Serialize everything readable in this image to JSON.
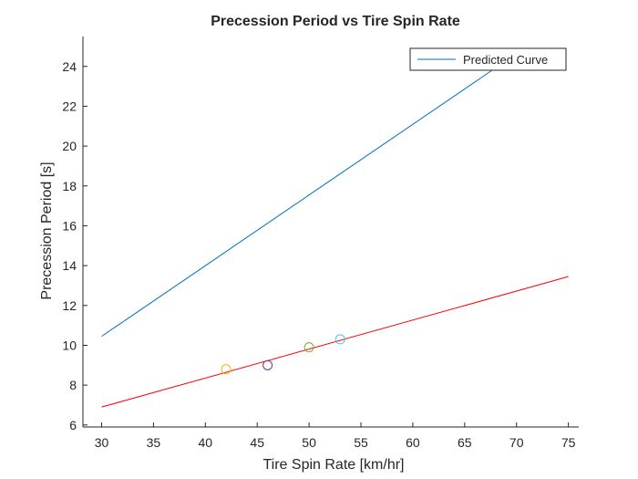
{
  "chart_data": {
    "type": "line",
    "title": "Precession Period vs Tire Spin Rate",
    "xlabel": "Tire Spin Rate [km/hr]",
    "ylabel": "Precession Period [s]",
    "xlim": [
      28.2,
      76
    ],
    "ylim": [
      5.9,
      25.5
    ],
    "xticks": [
      30,
      35,
      40,
      45,
      50,
      55,
      60,
      65,
      70,
      75
    ],
    "yticks": [
      6,
      8,
      10,
      12,
      14,
      16,
      18,
      20,
      22,
      24
    ],
    "grid": false,
    "legend": {
      "entries": [
        "Predicted Curve"
      ],
      "location": "top-right"
    },
    "series": [
      {
        "name": "Predicted Curve",
        "kind": "line",
        "color": "#0072BD",
        "x": [
          30,
          68.2
        ],
        "y": [
          10.45,
          24
        ]
      },
      {
        "kind": "line",
        "color": "#FF0000",
        "x": [
          30,
          75
        ],
        "y": [
          6.9,
          13.45
        ]
      },
      {
        "kind": "markers",
        "marker": "circle",
        "points": [
          {
            "x": 42,
            "y": 8.8,
            "color": "#EDB120"
          },
          {
            "x": 46,
            "y": 9.0,
            "color": "#7E2F8E"
          },
          {
            "x": 50,
            "y": 9.9,
            "color": "#77AC30"
          },
          {
            "x": 53,
            "y": 10.3,
            "color": "#4DBEEE"
          }
        ]
      }
    ]
  }
}
